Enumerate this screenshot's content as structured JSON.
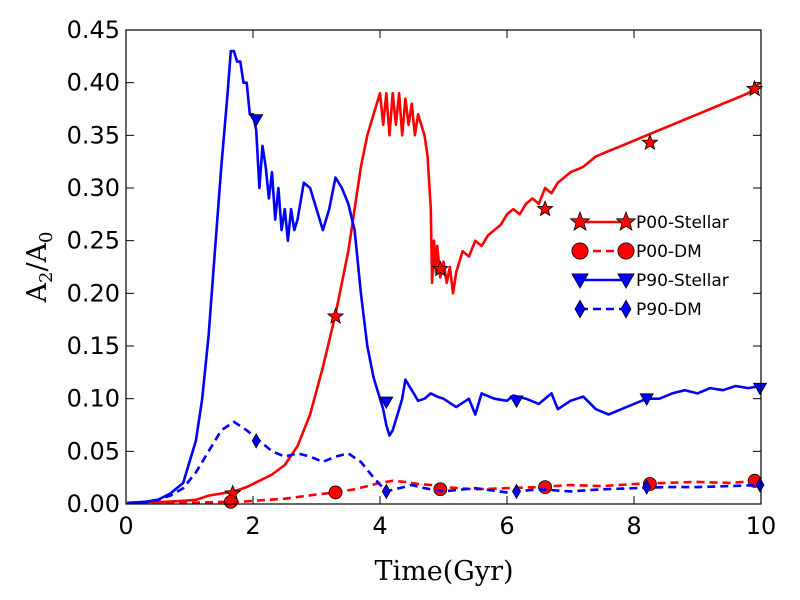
{
  "chart_data": {
    "type": "line",
    "title": "",
    "xlabel": "Time(Gyr)",
    "ylabel": {
      "main": "A",
      "sub_num": "2",
      "sep": "/",
      "den": "A",
      "sub_den": "0"
    },
    "xlim": [
      0,
      10
    ],
    "ylim": [
      0,
      0.45
    ],
    "x_ticks": [
      0,
      2,
      4,
      6,
      8,
      10
    ],
    "x_tick_labels": [
      "0",
      "2",
      "4",
      "6",
      "8",
      "10"
    ],
    "y_ticks": [
      0,
      0.05,
      0.1,
      0.15,
      0.2,
      0.25,
      0.3,
      0.35,
      0.4,
      0.45
    ],
    "y_tick_labels": [
      "0.00",
      "0.05",
      "0.10",
      "0.15",
      "0.20",
      "0.25",
      "0.30",
      "0.35",
      "0.40",
      "0.45"
    ],
    "grid": false,
    "legend_position": "right",
    "series": [
      {
        "name": "P00-Stellar",
        "color": "#ff0000",
        "dash": "solid",
        "marker": "star",
        "x": [
          0,
          0.3,
          0.6,
          0.9,
          1.1,
          1.3,
          1.5,
          1.7,
          1.9,
          2.1,
          2.3,
          2.5,
          2.7,
          2.9,
          3.1,
          3.3,
          3.5,
          3.6,
          3.7,
          3.8,
          3.9,
          4.0,
          4.05,
          4.1,
          4.15,
          4.2,
          4.25,
          4.3,
          4.35,
          4.4,
          4.45,
          4.5,
          4.55,
          4.6,
          4.7,
          4.75,
          4.8,
          4.82,
          4.85,
          4.88,
          4.9,
          4.95,
          5.0,
          5.05,
          5.1,
          5.15,
          5.2,
          5.25,
          5.3,
          5.4,
          5.5,
          5.6,
          5.7,
          5.8,
          5.9,
          6.0,
          6.1,
          6.2,
          6.3,
          6.4,
          6.5,
          6.6,
          6.7,
          6.8,
          6.9,
          7.0,
          7.2,
          7.4,
          7.6,
          7.8,
          8.0,
          8.2,
          8.4,
          8.6,
          8.8,
          9.0,
          9.2,
          9.4,
          9.6,
          9.8,
          10.0
        ],
        "y": [
          0.0,
          0.002,
          0.002,
          0.003,
          0.004,
          0.008,
          0.01,
          0.012,
          0.016,
          0.022,
          0.028,
          0.037,
          0.055,
          0.085,
          0.13,
          0.18,
          0.24,
          0.28,
          0.32,
          0.35,
          0.37,
          0.39,
          0.36,
          0.39,
          0.35,
          0.39,
          0.36,
          0.39,
          0.35,
          0.385,
          0.36,
          0.38,
          0.35,
          0.37,
          0.35,
          0.33,
          0.28,
          0.21,
          0.25,
          0.22,
          0.245,
          0.215,
          0.23,
          0.21,
          0.225,
          0.2,
          0.22,
          0.23,
          0.24,
          0.235,
          0.25,
          0.245,
          0.255,
          0.26,
          0.265,
          0.275,
          0.28,
          0.275,
          0.285,
          0.29,
          0.285,
          0.3,
          0.295,
          0.305,
          0.31,
          0.315,
          0.32,
          0.33,
          0.335,
          0.34,
          0.345,
          0.35,
          0.355,
          0.36,
          0.365,
          0.37,
          0.375,
          0.38,
          0.385,
          0.39,
          0.4
        ],
        "marker_x": [
          1.68,
          3.3,
          4.95,
          6.6,
          8.25,
          9.9
        ],
        "marker_y": [
          0.01,
          0.178,
          0.223,
          0.28,
          0.343,
          0.394
        ]
      },
      {
        "name": "P00-DM",
        "color": "#ff0000",
        "dash": "dashed",
        "marker": "circle",
        "x": [
          0,
          0.5,
          1.0,
          1.5,
          1.8,
          2.0,
          2.5,
          3.0,
          3.3,
          3.6,
          3.8,
          4.0,
          4.2,
          4.4,
          4.6,
          4.8,
          5.0,
          5.5,
          6.0,
          6.5,
          7.0,
          7.5,
          8.0,
          8.5,
          9.0,
          9.5,
          10.0
        ],
        "y": [
          0.0,
          0.001,
          0.001,
          0.002,
          0.002,
          0.003,
          0.005,
          0.009,
          0.011,
          0.014,
          0.017,
          0.02,
          0.022,
          0.021,
          0.019,
          0.018,
          0.016,
          0.014,
          0.015,
          0.016,
          0.018,
          0.017,
          0.019,
          0.02,
          0.021,
          0.02,
          0.022
        ],
        "marker_x": [
          1.65,
          3.3,
          4.95,
          6.6,
          8.25,
          9.9
        ],
        "marker_y": [
          0.002,
          0.011,
          0.014,
          0.016,
          0.019,
          0.022
        ]
      },
      {
        "name": "P90-Stellar",
        "color": "#0000ff",
        "dash": "solid",
        "marker": "triangle-down",
        "x": [
          0,
          0.3,
          0.5,
          0.7,
          0.9,
          1.0,
          1.1,
          1.2,
          1.3,
          1.4,
          1.5,
          1.6,
          1.65,
          1.7,
          1.75,
          1.8,
          1.85,
          1.9,
          1.95,
          2.0,
          2.05,
          2.1,
          2.15,
          2.2,
          2.25,
          2.3,
          2.35,
          2.4,
          2.45,
          2.5,
          2.55,
          2.6,
          2.65,
          2.7,
          2.8,
          2.9,
          3.0,
          3.1,
          3.2,
          3.3,
          3.4,
          3.5,
          3.6,
          3.7,
          3.8,
          3.9,
          4.0,
          4.05,
          4.1,
          4.15,
          4.2,
          4.25,
          4.3,
          4.35,
          4.4,
          4.5,
          4.6,
          4.7,
          4.8,
          4.9,
          5.0,
          5.2,
          5.4,
          5.5,
          5.6,
          5.8,
          6.0,
          6.1,
          6.3,
          6.5,
          6.7,
          6.8,
          7.0,
          7.2,
          7.4,
          7.6,
          7.8,
          8.0,
          8.2,
          8.4,
          8.6,
          8.8,
          9.0,
          9.2,
          9.4,
          9.6,
          9.8,
          10.0
        ],
        "y": [
          0.001,
          0.002,
          0.004,
          0.01,
          0.02,
          0.04,
          0.06,
          0.1,
          0.16,
          0.24,
          0.32,
          0.39,
          0.43,
          0.43,
          0.42,
          0.42,
          0.4,
          0.4,
          0.37,
          0.37,
          0.355,
          0.3,
          0.34,
          0.32,
          0.29,
          0.315,
          0.27,
          0.3,
          0.26,
          0.28,
          0.25,
          0.28,
          0.26,
          0.27,
          0.305,
          0.3,
          0.28,
          0.26,
          0.28,
          0.31,
          0.3,
          0.285,
          0.26,
          0.2,
          0.15,
          0.12,
          0.1,
          0.09,
          0.075,
          0.065,
          0.07,
          0.08,
          0.09,
          0.1,
          0.118,
          0.108,
          0.098,
          0.1,
          0.105,
          0.102,
          0.1,
          0.092,
          0.1,
          0.085,
          0.105,
          0.1,
          0.098,
          0.103,
          0.1,
          0.095,
          0.105,
          0.09,
          0.098,
          0.102,
          0.09,
          0.085,
          0.09,
          0.095,
          0.1,
          0.1,
          0.105,
          0.108,
          0.105,
          0.11,
          0.108,
          0.112,
          0.11,
          0.112
        ],
        "marker_x": [
          2.05,
          4.1,
          6.15,
          8.2,
          10.0
        ],
        "marker_y": [
          0.365,
          0.097,
          0.098,
          0.1,
          0.11
        ]
      },
      {
        "name": "P90-DM",
        "color": "#0000ff",
        "dash": "dashed",
        "marker": "thin-diamond",
        "x": [
          0,
          0.3,
          0.5,
          0.7,
          0.9,
          1.1,
          1.3,
          1.5,
          1.7,
          1.9,
          2.1,
          2.3,
          2.5,
          2.7,
          2.9,
          3.1,
          3.3,
          3.5,
          3.7,
          3.9,
          4.1,
          4.3,
          4.5,
          4.7,
          5.0,
          5.5,
          6.0,
          6.5,
          7.0,
          7.5,
          8.0,
          8.5,
          9.0,
          9.5,
          10.0
        ],
        "y": [
          0.001,
          0.002,
          0.004,
          0.008,
          0.015,
          0.03,
          0.05,
          0.07,
          0.078,
          0.07,
          0.06,
          0.05,
          0.045,
          0.048,
          0.045,
          0.04,
          0.045,
          0.048,
          0.04,
          0.025,
          0.012,
          0.015,
          0.018,
          0.015,
          0.012,
          0.015,
          0.011,
          0.014,
          0.012,
          0.014,
          0.015,
          0.016,
          0.016,
          0.017,
          0.018
        ],
        "marker_x": [
          2.05,
          4.1,
          6.15,
          8.2,
          10.0
        ],
        "marker_y": [
          0.06,
          0.012,
          0.012,
          0.016,
          0.018
        ]
      }
    ]
  }
}
